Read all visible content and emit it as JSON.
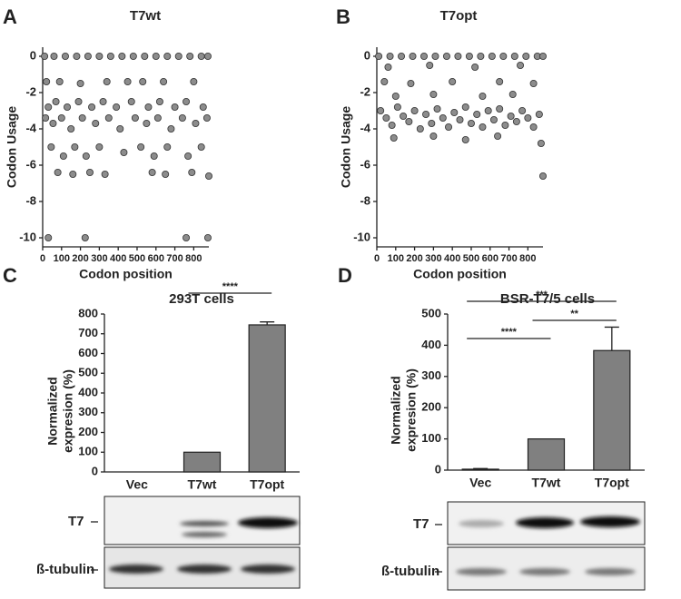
{
  "chart_data": [
    {
      "type": "scatter",
      "panel": "A",
      "title": "T7wt",
      "xlabel": "Codon position",
      "ylabel": "Codon Usage",
      "x": [
        10,
        60,
        120,
        180,
        240,
        300,
        360,
        420,
        480,
        540,
        600,
        660,
        720,
        780,
        840,
        875,
        20,
        90,
        200,
        340,
        450,
        530,
        640,
        800,
        30,
        70,
        130,
        190,
        260,
        320,
        390,
        470,
        560,
        620,
        700,
        760,
        850,
        15,
        55,
        100,
        150,
        210,
        280,
        350,
        410,
        490,
        550,
        610,
        680,
        740,
        810,
        870,
        45,
        110,
        170,
        230,
        300,
        430,
        520,
        590,
        660,
        770,
        840,
        80,
        160,
        250,
        330,
        580,
        650,
        790,
        880,
        30,
        225,
        760,
        875
      ],
      "values": [
        0,
        0,
        0,
        0,
        0,
        0,
        0,
        0,
        0,
        0,
        0,
        0,
        0,
        0,
        0,
        0,
        -1.4,
        -1.4,
        -1.5,
        -1.4,
        -1.4,
        -1.4,
        -1.4,
        -1.4,
        -2.8,
        -2.5,
        -2.8,
        -2.5,
        -2.8,
        -2.5,
        -2.8,
        -2.5,
        -2.8,
        -2.5,
        -2.8,
        -2.5,
        -2.8,
        -3.4,
        -3.7,
        -3.4,
        -4,
        -3.4,
        -3.7,
        -3.4,
        -4,
        -3.4,
        -3.7,
        -3.4,
        -4,
        -3.4,
        -3.7,
        -3.4,
        -5,
        -5.5,
        -5,
        -5.5,
        -5,
        -5.3,
        -5,
        -5.5,
        -5,
        -5.5,
        -5,
        -6.4,
        -6.5,
        -6.4,
        -6.5,
        -6.4,
        -6.5,
        -6.4,
        -6.6,
        -10,
        -10,
        -10,
        -10
      ],
      "color": "#8c8c8c",
      "xlim": [
        0,
        880
      ],
      "xticks": [
        0,
        100,
        200,
        300,
        400,
        500,
        600,
        700,
        800
      ],
      "ylim": [
        -10.5,
        0.5
      ],
      "yticks": [
        0,
        -2,
        -4,
        -6,
        -8,
        -10
      ]
    },
    {
      "type": "scatter",
      "panel": "B",
      "title": "T7opt",
      "xlabel": "Codon position",
      "ylabel": "Codon Usage",
      "x": [
        10,
        70,
        130,
        190,
        250,
        310,
        370,
        430,
        490,
        550,
        610,
        670,
        730,
        790,
        850,
        880,
        60,
        280,
        520,
        760,
        40,
        180,
        400,
        650,
        830,
        100,
        300,
        560,
        720,
        20,
        50,
        80,
        110,
        140,
        170,
        200,
        230,
        260,
        290,
        320,
        350,
        380,
        410,
        440,
        470,
        500,
        530,
        560,
        590,
        620,
        650,
        680,
        710,
        740,
        770,
        800,
        830,
        860,
        90,
        300,
        470,
        640,
        870,
        880
      ],
      "values": [
        0,
        0,
        0,
        0,
        0,
        0,
        0,
        0,
        0,
        0,
        0,
        0,
        0,
        0,
        0,
        0,
        -0.6,
        -0.5,
        -0.6,
        -0.5,
        -1.4,
        -1.5,
        -1.4,
        -1.4,
        -1.5,
        -2.2,
        -2.1,
        -2.2,
        -2.1,
        -3,
        -3.4,
        -3.8,
        -2.8,
        -3.3,
        -3.6,
        -3,
        -4,
        -3.2,
        -3.7,
        -2.9,
        -3.4,
        -3.9,
        -3.1,
        -3.5,
        -2.8,
        -3.7,
        -3.2,
        -3.9,
        -3,
        -3.5,
        -2.9,
        -3.8,
        -3.3,
        -3.6,
        -3,
        -3.4,
        -3.9,
        -3.2,
        -4.5,
        -4.4,
        -4.6,
        -4.4,
        -4.8,
        -6.6
      ],
      "color": "#8c8c8c",
      "xlim": [
        0,
        880
      ],
      "xticks": [
        0,
        100,
        200,
        300,
        400,
        500,
        600,
        700,
        800
      ],
      "ylim": [
        -10.5,
        0.5
      ],
      "yticks": [
        0,
        -2,
        -4,
        -6,
        -8,
        -10
      ]
    },
    {
      "type": "bar",
      "panel": "C",
      "title": "293T cells",
      "ylabel": [
        "Normalized",
        "expresion (%)"
      ],
      "categories": [
        "Vec",
        "T7wt",
        "T7opt"
      ],
      "values": [
        0,
        100,
        745
      ],
      "errors": [
        0,
        0,
        15
      ],
      "color": "#808080",
      "ylim": [
        0,
        800
      ],
      "yticks": [
        0,
        100,
        200,
        300,
        400,
        500,
        600,
        700,
        800
      ],
      "annotations": [
        {
          "text": "****",
          "between": [
            1,
            2
          ]
        }
      ],
      "blot_labels": [
        "T7",
        "ß-tubulin"
      ]
    },
    {
      "type": "bar",
      "panel": "D",
      "title": "BSR-T7/5 cells",
      "ylabel": [
        "Normalized",
        "expresion (%)"
      ],
      "categories": [
        "Vec",
        "T7wt",
        "T7opt"
      ],
      "values": [
        3,
        100,
        383
      ],
      "errors": [
        2,
        0,
        75
      ],
      "color": "#808080",
      "ylim": [
        0,
        500
      ],
      "yticks": [
        0,
        100,
        200,
        300,
        400,
        500
      ],
      "annotations": [
        {
          "text": "***",
          "between": [
            0,
            2
          ]
        },
        {
          "text": "**",
          "between": [
            1,
            2
          ]
        },
        {
          "text": "****",
          "between": [
            0,
            1
          ]
        }
      ],
      "blot_labels": [
        "T7",
        "ß-tubulin"
      ]
    }
  ]
}
